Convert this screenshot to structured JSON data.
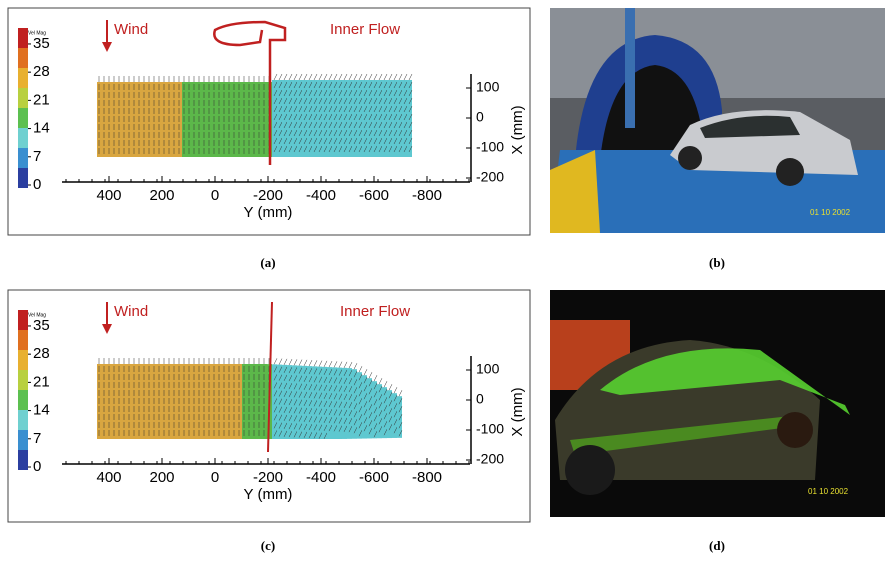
{
  "figure": {
    "panels": [
      {
        "label": "(a)",
        "plot": {
          "colorbar_title": "Vel Mag",
          "colorbar_ticks": [
            35,
            28,
            21,
            14,
            7,
            0
          ],
          "wind": "Wind",
          "inner_flow": "Inner Flow",
          "y_ticks": [
            400,
            200,
            0,
            -200,
            -400,
            -600,
            -800
          ],
          "y_label": "Y (mm)",
          "x_ticks": [
            100,
            0,
            -100,
            -200
          ],
          "x_label": "X (mm)"
        }
      },
      {
        "label": "(b)",
        "photo": {
          "timestamp": "01 10 2002"
        }
      },
      {
        "label": "(c)",
        "plot": {
          "colorbar_title": "Vel Mag",
          "colorbar_ticks": [
            35,
            28,
            21,
            14,
            7,
            0
          ],
          "wind": "Wind",
          "inner_flow": "Inner Flow",
          "y_ticks": [
            400,
            200,
            0,
            -200,
            -400,
            -600,
            -800
          ],
          "y_label": "Y (mm)",
          "x_ticks": [
            100,
            0,
            -100,
            -200
          ],
          "x_label": "X (mm)"
        }
      },
      {
        "label": "(d)",
        "photo": {
          "timestamp": "01 10 2002"
        }
      }
    ]
  }
}
